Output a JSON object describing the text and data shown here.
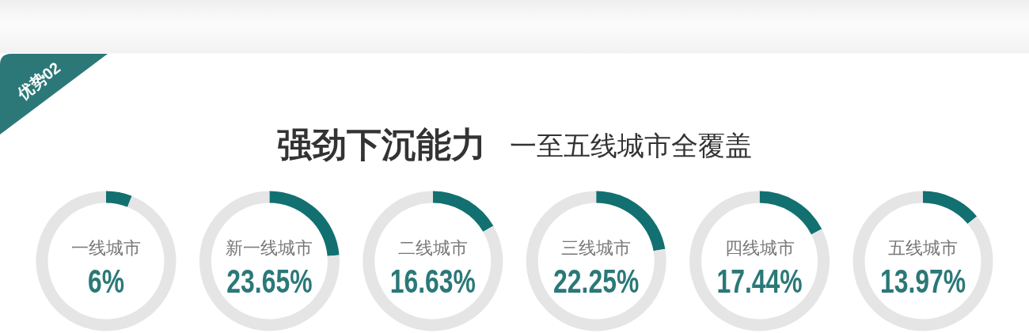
{
  "chart_data": [
    {
      "type": "other",
      "title": "强劲下沉能力",
      "subtitle": "一至五线城市全覆盖",
      "annotations": [
        "优势02"
      ]
    },
    {
      "type": "donut",
      "categories": [
        "一线城市",
        null
      ],
      "values": [
        6,
        94
      ],
      "colors": [
        "#127071",
        "#e5e5e5"
      ],
      "value_labels": [
        "6%",
        null
      ]
    },
    {
      "type": "donut",
      "categories": [
        "新一线城市",
        null
      ],
      "values": [
        23.65,
        76.35
      ],
      "colors": [
        "#127071",
        "#e5e5e5"
      ],
      "value_labels": [
        "23.65%",
        null
      ]
    },
    {
      "type": "donut",
      "categories": [
        "二线城市",
        null
      ],
      "values": [
        16.63,
        83.37
      ],
      "colors": [
        "#127071",
        "#e5e5e5"
      ],
      "value_labels": [
        "16.63%",
        null
      ]
    },
    {
      "type": "donut",
      "categories": [
        "三线城市",
        null
      ],
      "values": [
        22.25,
        77.75
      ],
      "colors": [
        "#127071",
        "#e5e5e5"
      ],
      "value_labels": [
        "22.25%",
        null
      ]
    },
    {
      "type": "donut",
      "categories": [
        "四线城市",
        null
      ],
      "values": [
        17.44,
        82.56
      ],
      "colors": [
        "#127071",
        "#e5e5e5"
      ],
      "value_labels": [
        "17.44%",
        null
      ]
    },
    {
      "type": "donut",
      "categories": [
        "五线城市",
        null
      ],
      "values": [
        13.97,
        86.03
      ],
      "colors": [
        "#127071",
        "#e5e5e5"
      ],
      "value_labels": [
        "13.97%",
        null
      ]
    }
  ]
}
